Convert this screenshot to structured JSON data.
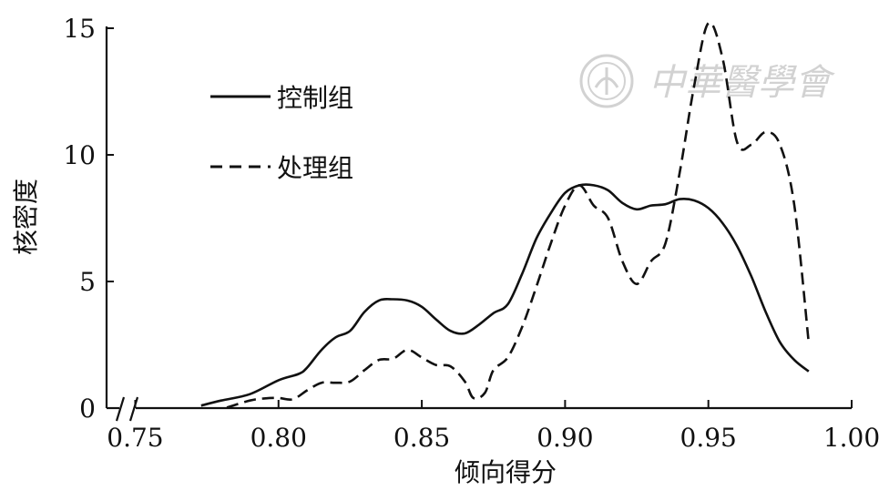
{
  "chart_data": {
    "type": "line",
    "title": "",
    "xlabel": "倾向得分",
    "ylabel": "核密度",
    "xlim": [
      0.74,
      1.0
    ],
    "ylim": [
      0,
      15
    ],
    "x_ticks": [
      "0.75",
      "0.80",
      "0.85",
      "0.90",
      "0.95",
      "1.00"
    ],
    "y_ticks": [
      "0",
      "5",
      "10",
      "15"
    ],
    "x_axis_break": true,
    "grid": false,
    "legend_position": "top-left",
    "series": [
      {
        "name": "控制组",
        "style": "solid",
        "color": "#111111",
        "points": [
          [
            0.773,
            0.1
          ],
          [
            0.78,
            0.3
          ],
          [
            0.79,
            0.55
          ],
          [
            0.8,
            1.1
          ],
          [
            0.807,
            1.35
          ],
          [
            0.81,
            1.6
          ],
          [
            0.815,
            2.3
          ],
          [
            0.82,
            2.8
          ],
          [
            0.825,
            3.05
          ],
          [
            0.83,
            3.8
          ],
          [
            0.835,
            4.25
          ],
          [
            0.84,
            4.3
          ],
          [
            0.845,
            4.25
          ],
          [
            0.85,
            4.0
          ],
          [
            0.855,
            3.5
          ],
          [
            0.86,
            3.05
          ],
          [
            0.865,
            2.95
          ],
          [
            0.87,
            3.3
          ],
          [
            0.875,
            3.75
          ],
          [
            0.88,
            4.1
          ],
          [
            0.885,
            5.3
          ],
          [
            0.89,
            6.7
          ],
          [
            0.895,
            7.7
          ],
          [
            0.9,
            8.5
          ],
          [
            0.905,
            8.8
          ],
          [
            0.91,
            8.8
          ],
          [
            0.915,
            8.6
          ],
          [
            0.92,
            8.1
          ],
          [
            0.925,
            7.85
          ],
          [
            0.93,
            8.0
          ],
          [
            0.935,
            8.05
          ],
          [
            0.94,
            8.25
          ],
          [
            0.945,
            8.2
          ],
          [
            0.95,
            7.9
          ],
          [
            0.955,
            7.3
          ],
          [
            0.96,
            6.4
          ],
          [
            0.965,
            5.2
          ],
          [
            0.97,
            3.8
          ],
          [
            0.975,
            2.6
          ],
          [
            0.98,
            1.9
          ],
          [
            0.985,
            1.45
          ]
        ]
      },
      {
        "name": "处理组",
        "style": "dashed",
        "color": "#111111",
        "points": [
          [
            0.782,
            0.02
          ],
          [
            0.79,
            0.3
          ],
          [
            0.795,
            0.38
          ],
          [
            0.8,
            0.4
          ],
          [
            0.805,
            0.35
          ],
          [
            0.81,
            0.7
          ],
          [
            0.815,
            1.0
          ],
          [
            0.82,
            1.0
          ],
          [
            0.825,
            1.05
          ],
          [
            0.83,
            1.5
          ],
          [
            0.835,
            1.9
          ],
          [
            0.84,
            1.95
          ],
          [
            0.845,
            2.3
          ],
          [
            0.85,
            2.0
          ],
          [
            0.855,
            1.7
          ],
          [
            0.86,
            1.65
          ],
          [
            0.865,
            1.05
          ],
          [
            0.868,
            0.4
          ],
          [
            0.872,
            0.6
          ],
          [
            0.875,
            1.5
          ],
          [
            0.88,
            2.0
          ],
          [
            0.885,
            3.2
          ],
          [
            0.89,
            4.8
          ],
          [
            0.895,
            6.5
          ],
          [
            0.9,
            8.0
          ],
          [
            0.905,
            8.8
          ],
          [
            0.91,
            8.0
          ],
          [
            0.915,
            7.5
          ],
          [
            0.92,
            5.8
          ],
          [
            0.925,
            4.9
          ],
          [
            0.93,
            5.8
          ],
          [
            0.935,
            6.5
          ],
          [
            0.94,
            9.3
          ],
          [
            0.945,
            12.7
          ],
          [
            0.95,
            15.2
          ],
          [
            0.955,
            13.8
          ],
          [
            0.96,
            10.5
          ],
          [
            0.965,
            10.4
          ],
          [
            0.97,
            10.9
          ],
          [
            0.975,
            10.4
          ],
          [
            0.98,
            8.0
          ],
          [
            0.985,
            2.6
          ]
        ]
      }
    ],
    "watermark": {
      "icon": "seal-emblem-icon",
      "text": "中華醫學會"
    }
  }
}
